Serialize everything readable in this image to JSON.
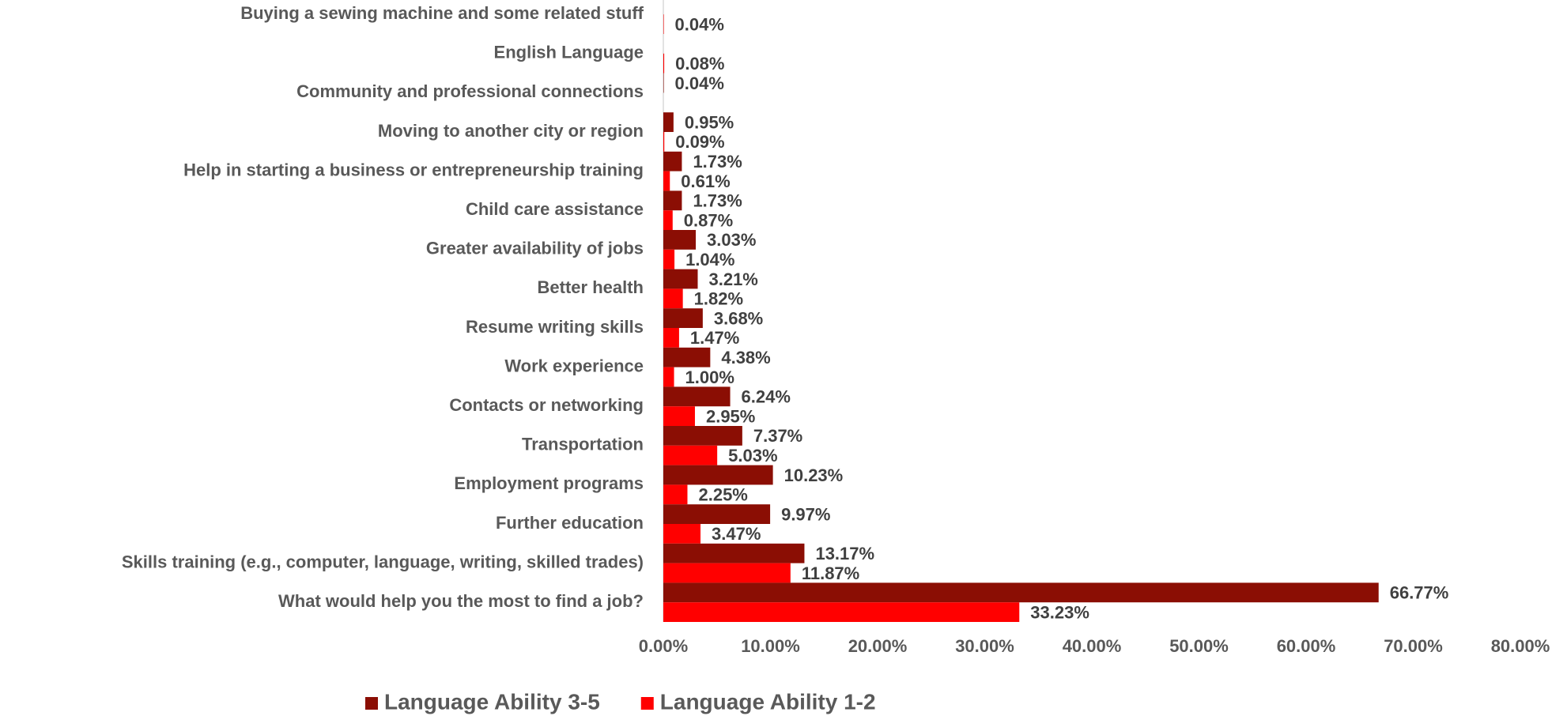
{
  "chart_data": {
    "type": "hbar",
    "categories": [
      "Buying a sewing machine and some related stuff",
      "English Language",
      "Community and professional connections",
      "Moving to another city or region",
      "Help in starting a business or entrepreneurship training",
      "Child care assistance",
      "Greater availability of jobs",
      "Better health",
      "Resume writing skills",
      "Work experience",
      "Contacts or networking",
      "Transportation",
      "Employment programs",
      "Further education",
      "Skills training (e.g., computer, language, writing, skilled trades)",
      "What would help you the most to find a job?"
    ],
    "series": [
      {
        "name": "Language Ability 3-5",
        "color": "#8b0e04",
        "values": [
          null,
          null,
          0.04,
          0.95,
          1.73,
          1.73,
          3.03,
          3.21,
          3.68,
          4.38,
          6.24,
          7.37,
          10.23,
          9.97,
          13.17,
          66.77
        ],
        "value_labels": [
          null,
          null,
          "0.04%",
          "0.95%",
          "1.73%",
          "1.73%",
          "3.03%",
          "3.21%",
          "3.68%",
          "4.38%",
          "6.24%",
          "7.37%",
          "10.23%",
          "9.97%",
          "13.17%",
          "66.77%"
        ]
      },
      {
        "name": "Language Ability 1-2",
        "color": "#ff0000",
        "values": [
          0.04,
          0.08,
          null,
          0.09,
          0.61,
          0.87,
          1.04,
          1.82,
          1.47,
          1.0,
          2.95,
          5.03,
          2.25,
          3.47,
          11.87,
          33.23
        ],
        "value_labels": [
          "0.04%",
          "0.08%",
          null,
          "0.09%",
          "0.61%",
          "0.87%",
          "1.04%",
          "1.82%",
          "1.47%",
          "1.00%",
          "2.95%",
          "5.03%",
          "2.25%",
          "3.47%",
          "11.87%",
          "33.23%"
        ]
      }
    ],
    "xlim": [
      0,
      80
    ],
    "xticks": [
      {
        "value": 0,
        "label": "0.00%"
      },
      {
        "value": 10,
        "label": "10.00%"
      },
      {
        "value": 20,
        "label": "20.00%"
      },
      {
        "value": 30,
        "label": "30.00%"
      },
      {
        "value": 40,
        "label": "40.00%"
      },
      {
        "value": 50,
        "label": "50.00%"
      },
      {
        "value": 60,
        "label": "60.00%"
      },
      {
        "value": 70,
        "label": "70.00%"
      },
      {
        "value": 80,
        "label": "80.00%"
      }
    ],
    "legend": "bottom"
  }
}
